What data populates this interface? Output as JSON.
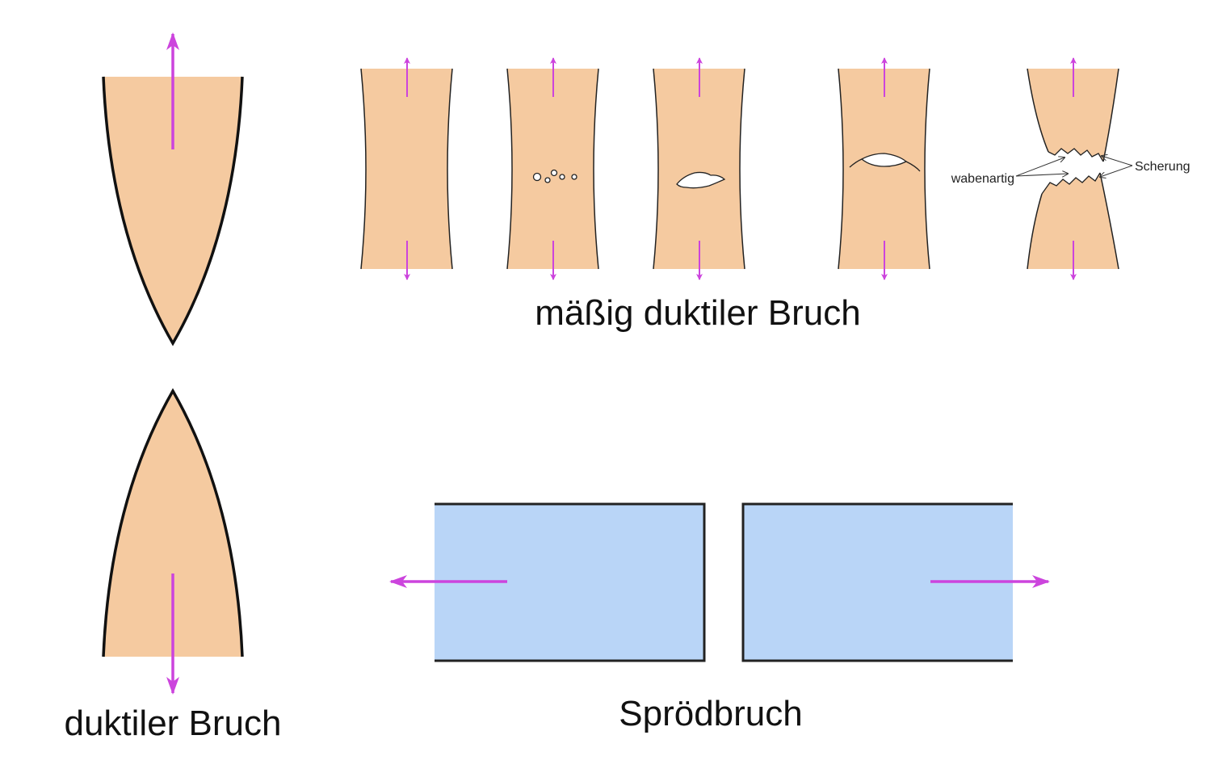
{
  "captions": {
    "moderate_ductile": "mäßig duktiler Bruch",
    "ductile": "duktiler Bruch",
    "brittle": "Sprödbruch"
  },
  "annotations": {
    "dimpled": "wabenartig",
    "shear": "Scherung"
  },
  "colors": {
    "specimen_fill": "#f5caa0",
    "brittle_fill": "#b9d5f7",
    "arrow": "#cc44dd",
    "outline": "#111111"
  }
}
